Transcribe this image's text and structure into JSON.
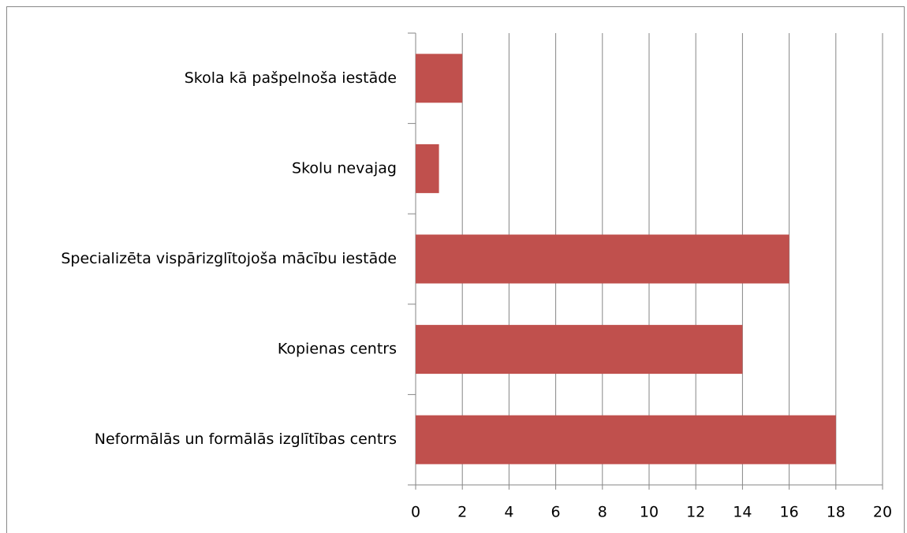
{
  "chart_data": {
    "type": "hbar",
    "categories": [
      "Skola kā pašpelnoša iestāde",
      "Skolu nevajag",
      "Specializēta vispārizglītojoša mācību iestāde",
      "Kopienas centrs",
      "Neformālās un formālās izglītības centrs"
    ],
    "values": [
      2,
      1,
      16,
      14,
      18
    ],
    "color": "#c0504d",
    "xlim": [
      0,
      20
    ],
    "xticks": [
      0,
      2,
      4,
      6,
      8,
      10,
      12,
      14,
      16,
      18,
      20
    ],
    "grid": true
  }
}
